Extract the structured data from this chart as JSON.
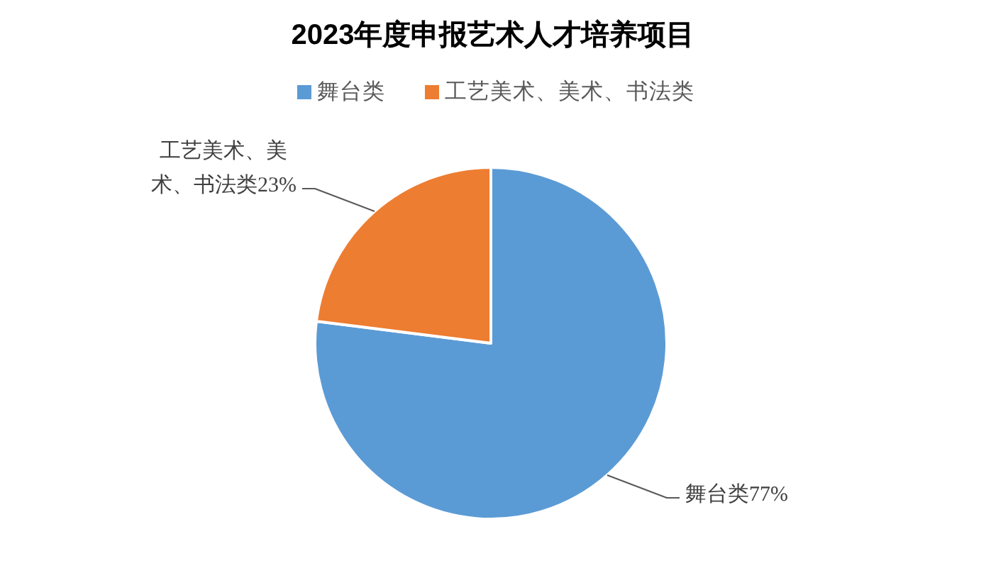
{
  "chart_data": {
    "type": "pie",
    "title": "2023年度申报艺术人才培养项目",
    "categories": [
      "舞台类",
      "工艺美术、美术、书法类"
    ],
    "values": [
      77,
      23
    ],
    "colors": [
      "#5b9bd5",
      "#ed7d31"
    ],
    "value_labels": [
      "舞台类77%",
      "工艺美术、美术、书法类23%"
    ],
    "legend": "top"
  }
}
